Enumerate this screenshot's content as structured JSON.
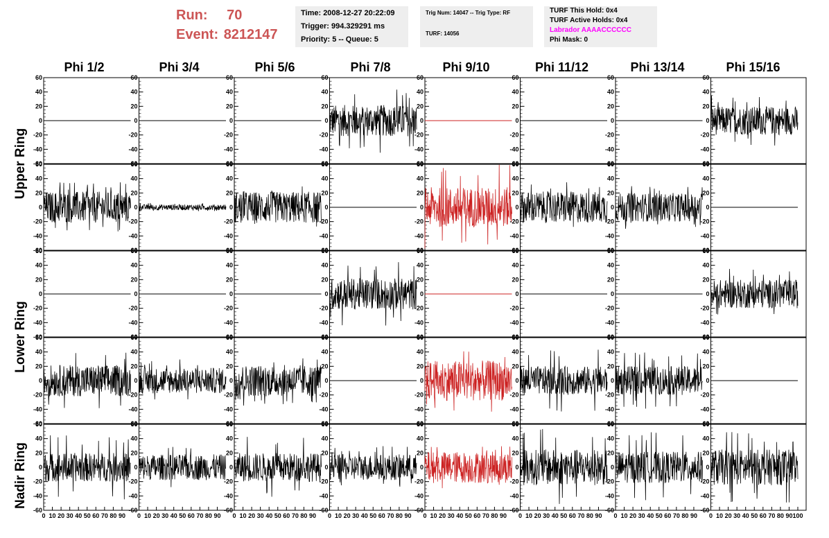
{
  "header": {
    "run_label": "Run:",
    "run_value": "70",
    "event_label": "Event:",
    "event_value": "8212147"
  },
  "info_box_1": {
    "time": "Time: 2008-12-27 20:22:09",
    "trigger": "Trigger: 994.329291 ms",
    "priority": "Priority: 5 -- Queue: 5"
  },
  "info_box_2": {
    "trig": "Trig Num: 14047 -- Trig Type: RF",
    "turf": "TURF: 14056"
  },
  "info_box_3": {
    "this_hold": "TURF This Hold: 0x4",
    "active_holds": "TURF Active Holds: 0x4",
    "labrador": "Labrador AAAACCCCCC",
    "phi_mask": "Phi Mask: 0"
  },
  "columns": [
    "Phi 1/2",
    "Phi 3/4",
    "Phi 5/6",
    "Phi 7/8",
    "Phi 9/10",
    "Phi 11/12",
    "Phi 13/14",
    "Phi 15/16"
  ],
  "rings": [
    "Upper Ring",
    "Lower Ring",
    "Nadir Ring"
  ],
  "colors": {
    "trace": "#000000",
    "highlight_trace": "#cc2222",
    "labrador": "#ff00ff",
    "run_text": "#cc5555"
  },
  "chart_data": {
    "type": "line",
    "xlim": [
      0,
      100
    ],
    "ylim": [
      -60,
      60
    ],
    "y_ticks": [
      -60,
      -40,
      -20,
      0,
      20,
      40,
      60
    ],
    "x_ticks": [
      0,
      10,
      20,
      30,
      40,
      50,
      60,
      70,
      80,
      90,
      100
    ],
    "x_tick_labels": [
      "0",
      "10",
      "20",
      "30",
      "40",
      "50",
      "60",
      "70",
      "80",
      "90",
      "100"
    ],
    "highlight_column": 4,
    "row_labels": [
      "Upper Ring (top)",
      "Upper Ring (bottom)",
      "Lower Ring (top)",
      "Lower Ring (bottom)",
      "Nadir Ring"
    ],
    "panels": [
      [
        {
          "kind": "flat"
        },
        {
          "kind": "flat"
        },
        {
          "kind": "flat"
        },
        {
          "kind": "noise",
          "amp": 22,
          "max": 45
        },
        {
          "kind": "flat"
        },
        {
          "kind": "flat"
        },
        {
          "kind": "flat"
        },
        {
          "kind": "noise",
          "amp": 20,
          "max": 35
        }
      ],
      [
        {
          "kind": "noise",
          "amp": 22,
          "max": 35
        },
        {
          "kind": "noise",
          "amp": 4,
          "max": 6
        },
        {
          "kind": "noise",
          "amp": 22,
          "max": 30
        },
        {
          "kind": "flat"
        },
        {
          "kind": "noise",
          "amp": 28,
          "max": 60
        },
        {
          "kind": "noise",
          "amp": 22,
          "max": 35
        },
        {
          "kind": "noise",
          "amp": 20,
          "max": 30
        },
        {
          "kind": "flat"
        }
      ],
      [
        {
          "kind": "flat"
        },
        {
          "kind": "flat"
        },
        {
          "kind": "flat"
        },
        {
          "kind": "noise",
          "amp": 22,
          "max": 45
        },
        {
          "kind": "flat"
        },
        {
          "kind": "flat"
        },
        {
          "kind": "flat"
        },
        {
          "kind": "noise",
          "amp": 20,
          "max": 35
        }
      ],
      [
        {
          "kind": "noise",
          "amp": 22,
          "max": 40
        },
        {
          "kind": "noise",
          "amp": 18,
          "max": 30
        },
        {
          "kind": "noise",
          "amp": 22,
          "max": 35
        },
        {
          "kind": "flat"
        },
        {
          "kind": "noise",
          "amp": 28,
          "max": 45
        },
        {
          "kind": "noise",
          "amp": 20,
          "max": 45
        },
        {
          "kind": "noise",
          "amp": 20,
          "max": 40
        },
        {
          "kind": "flat"
        }
      ],
      [
        {
          "kind": "noise",
          "amp": 20,
          "max": 45
        },
        {
          "kind": "noise",
          "amp": 18,
          "max": 30
        },
        {
          "kind": "noise",
          "amp": 20,
          "max": 45
        },
        {
          "kind": "noise",
          "amp": 18,
          "max": 30
        },
        {
          "kind": "noise",
          "amp": 22,
          "max": 30
        },
        {
          "kind": "noise",
          "amp": 25,
          "max": 55
        },
        {
          "kind": "noise",
          "amp": 22,
          "max": 50
        },
        {
          "kind": "noise",
          "amp": 25,
          "max": 50
        }
      ]
    ]
  }
}
